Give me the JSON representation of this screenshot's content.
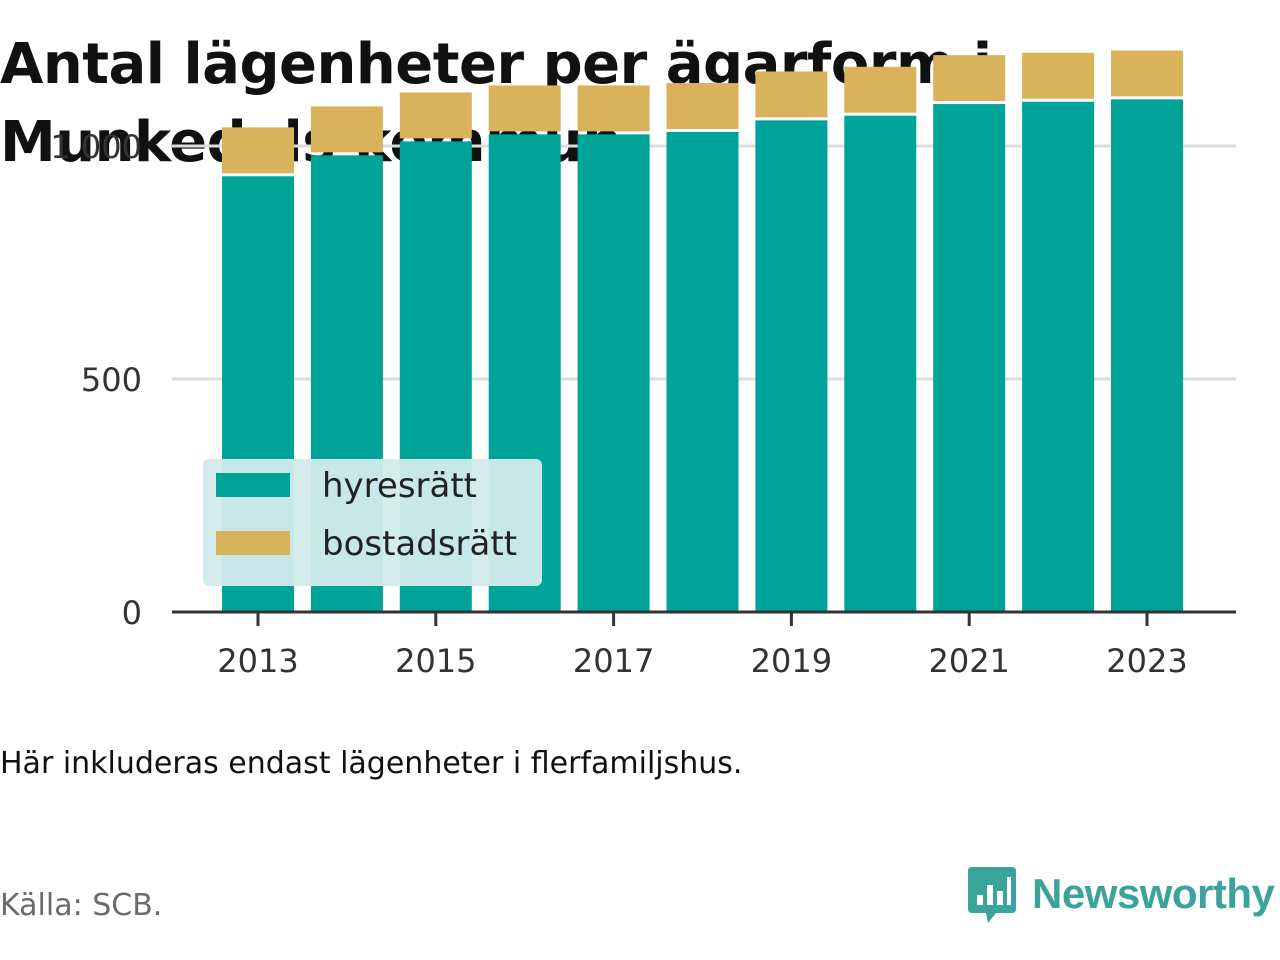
{
  "title": "Antal lägenheter per ägarform i Munkedals kommun",
  "note": "Här inkluderas endast lägenheter i flerfamiljshus.",
  "source": "Källa: SCB.",
  "brand": {
    "name": "Newsworthy",
    "icon": "newsworthy-logo-icon"
  },
  "colors": {
    "hyresratt": "#00a398",
    "bostadsratt": "#d9b25c",
    "legend_bg": "#d2ecea",
    "axis": "#333333",
    "grid": "#dddddd",
    "brand": "#3aa39a"
  },
  "chart_data": {
    "type": "bar",
    "stacked": true,
    "x": [
      2013,
      2014,
      2015,
      2016,
      2017,
      2018,
      2019,
      2020,
      2021,
      2022,
      2023
    ],
    "x_tick_labels": [
      "2013",
      "2015",
      "2017",
      "2019",
      "2021",
      "2023"
    ],
    "series": [
      {
        "name": "hyresrätt",
        "values": [
          935,
          980,
          1010,
          1025,
          1025,
          1030,
          1055,
          1065,
          1090,
          1095,
          1100
        ]
      },
      {
        "name": "bostadsrätt",
        "values": [
          105,
          105,
          105,
          105,
          105,
          105,
          105,
          105,
          105,
          105,
          105
        ]
      }
    ],
    "y_ticks": [
      0,
      500,
      1000
    ],
    "y_tick_labels": [
      "0",
      "500",
      "1 000"
    ],
    "ylim": [
      0,
      1200
    ],
    "grid": true,
    "legend_position": "bottom-left-inside",
    "xlabel": "",
    "ylabel": ""
  }
}
